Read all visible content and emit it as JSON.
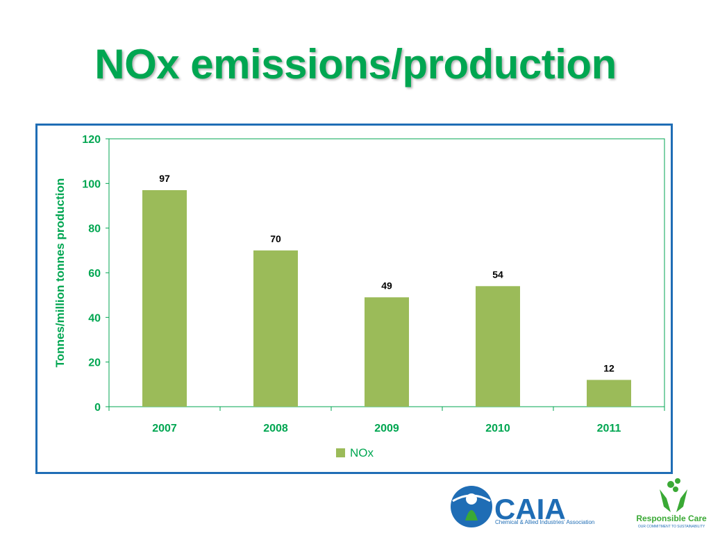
{
  "slide": {
    "title": "NOx emissions/production"
  },
  "colors": {
    "title": "#00a651",
    "axis_text": "#00a651",
    "bar": "#9bbb59",
    "frame": "#1f6db5",
    "caia_blue": "#1f6db5",
    "rc_green": "#3aa935"
  },
  "chart_data": {
    "type": "bar",
    "categories": [
      "2007",
      "2008",
      "2009",
      "2010",
      "2011"
    ],
    "series": [
      {
        "name": "NOx",
        "values": [
          97,
          70,
          49,
          54,
          12
        ]
      }
    ],
    "data_labels": [
      "97",
      "70",
      "49",
      "54",
      "12"
    ],
    "ylabel": "Tonnes/million tonnes production",
    "xlabel": "",
    "ylim": [
      0,
      120
    ],
    "yticks": [
      0,
      20,
      40,
      60,
      80,
      100,
      120
    ],
    "grid": false,
    "legend": "bottom"
  },
  "logos": {
    "caia": {
      "name": "CAIA",
      "tagline": "Chemical & Allied Industries' Association"
    },
    "responsible_care": {
      "name": "Responsible Care",
      "tagline": "OUR COMMITMENT TO SUSTAINABILITY"
    }
  }
}
